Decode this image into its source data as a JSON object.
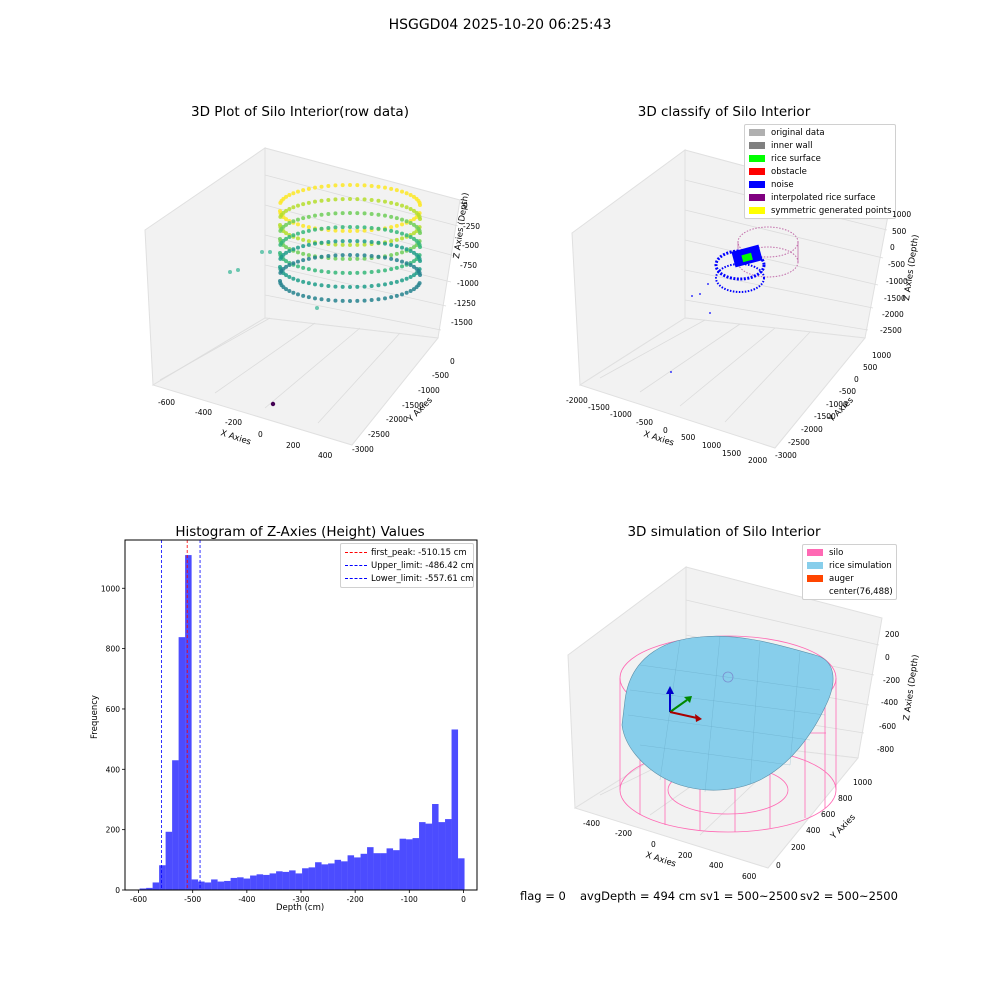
{
  "suptitle": "HSGGD04 2025-10-20 06:25:43",
  "status": {
    "flag": "flag = 0",
    "avg": "avgDepth = 494 cm",
    "sv1": "sv1 = 500~2500",
    "sv2": "sv2 = 500~2500"
  },
  "chart_data": [
    {
      "type": "scatter",
      "title": "3D Plot of Silo Interior(row data)",
      "xlabel": "X Axies",
      "ylabel": "Y Axies",
      "zlabel": "Z Axies (Depth)",
      "x_ticks": [
        "-600",
        "-400",
        "-200",
        "0",
        "200",
        "400"
      ],
      "y_ticks": [
        "0",
        "-500",
        "-1000",
        "-1500",
        "-2000",
        "-2500",
        "-3000"
      ],
      "z_ticks": [
        "0",
        "-250",
        "-500",
        "-750",
        "-1000",
        "-1250",
        "-1500"
      ],
      "colormap": "viridis",
      "description_points": "ring of points around depth -200 to -750, outliers near bottom"
    },
    {
      "type": "scatter",
      "title": "3D classify of Silo Interior",
      "xlabel": "X Axies",
      "ylabel": "Y Axies",
      "zlabel": "Z Axies (Depth)",
      "x_ticks": [
        "-2000",
        "-1500",
        "-1000",
        "-500",
        "0",
        "500",
        "1000",
        "1500",
        "2000"
      ],
      "y_ticks": [
        "1000",
        "500",
        "0",
        "-500",
        "-1000",
        "-1500",
        "-2000",
        "-2500",
        "-3000"
      ],
      "z_ticks": [
        "1000",
        "500",
        "0",
        "-500",
        "-1000",
        "-1500",
        "-2000",
        "-2500"
      ],
      "legend": [
        {
          "label": "original data",
          "color": "#b0b0b0"
        },
        {
          "label": "inner wall",
          "color": "#808080"
        },
        {
          "label": "rice surface",
          "color": "#00ff00"
        },
        {
          "label": "obstacle",
          "color": "#ff0000"
        },
        {
          "label": "noise",
          "color": "#0000ff"
        },
        {
          "label": "interpolated rice surface",
          "color": "#800080"
        },
        {
          "label": "symmetric generated points",
          "color": "#ffff00"
        }
      ]
    },
    {
      "type": "bar",
      "title": "Histogram of Z-Axies (Height) Values",
      "xlabel": "Depth (cm)",
      "ylabel": "Frequency",
      "xlim": [
        -625,
        25
      ],
      "ylim": [
        0,
        1160
      ],
      "x_ticks": [
        -600,
        -500,
        -400,
        -300,
        -200,
        -100,
        0
      ],
      "y_ticks": [
        0,
        200,
        400,
        600,
        800,
        1000
      ],
      "bin_width": 12,
      "bin_starts": [
        -610,
        -598,
        -586,
        -574,
        -562,
        -550,
        -538,
        -526,
        -514,
        -502,
        -490,
        -478,
        -466,
        -454,
        -442,
        -430,
        -418,
        -406,
        -394,
        -382,
        -370,
        -358,
        -346,
        -334,
        -322,
        -310,
        -298,
        -286,
        -274,
        -262,
        -250,
        -238,
        -226,
        -214,
        -202,
        -190,
        -178,
        -166,
        -154,
        -142,
        -130,
        -118,
        -106,
        -94,
        -82,
        -70,
        -58,
        -46,
        -34,
        -22,
        -10
      ],
      "values": [
        1,
        5,
        7,
        25,
        82,
        193,
        430,
        838,
        1110,
        35,
        28,
        25,
        35,
        28,
        30,
        40,
        42,
        38,
        48,
        52,
        50,
        55,
        62,
        60,
        65,
        55,
        72,
        75,
        92,
        85,
        88,
        100,
        95,
        115,
        108,
        120,
        142,
        122,
        122,
        138,
        132,
        170,
        168,
        172,
        225,
        220,
        285,
        225,
        235,
        532,
        105
      ],
      "color": "#0000ff",
      "vlines": [
        {
          "label": "first_peak: -510.15 cm",
          "x": -510.15,
          "color": "#ff0000"
        },
        {
          "label": "Upper_limit: -486.42 cm",
          "x": -486.42,
          "color": "#0000ff"
        },
        {
          "label": "Lower_limit: -557.61 cm",
          "x": -557.61,
          "color": "#0000ff"
        }
      ]
    },
    {
      "type": "other",
      "title": "3D simulation of Silo Interior",
      "xlabel": "X Axies",
      "ylabel": "Y Axies",
      "zlabel": "Z Axies (Depth)",
      "x_ticks": [
        "-400",
        "-200",
        "0",
        "200",
        "400",
        "600"
      ],
      "y_ticks": [
        "0",
        "200",
        "400",
        "600",
        "800",
        "1000"
      ],
      "z_ticks": [
        "200",
        "0",
        "-200",
        "-400",
        "-600",
        "-800"
      ],
      "legend": [
        {
          "label": "silo",
          "color": "#ff69b4"
        },
        {
          "label": "rice simulation",
          "color": "#87ceeb"
        },
        {
          "label": "auger",
          "color": "#ff4500"
        },
        {
          "label": "center(76,488)",
          "color": "#ffffff"
        }
      ]
    }
  ]
}
